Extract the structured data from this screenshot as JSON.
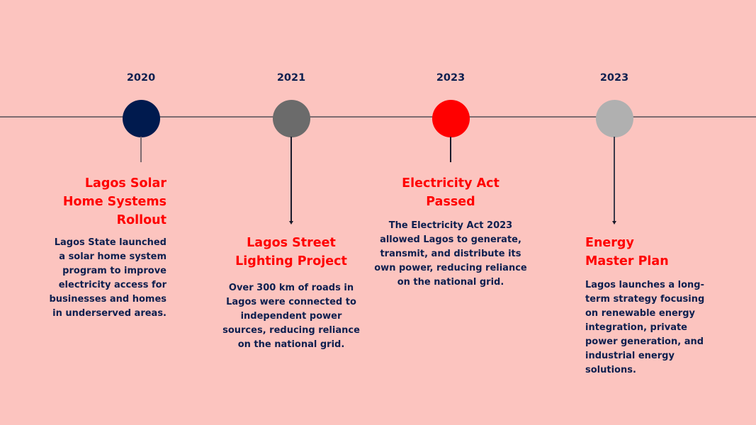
{
  "colors": {
    "background": "#fcc4bf",
    "axis": "#7d6b70",
    "title": "#ff0000",
    "text": "#0d1f4f"
  },
  "events": [
    {
      "year": "2020",
      "dot_color": "#001a4e",
      "title": "Lagos Solar\nHome Systems\nRollout",
      "body": "Lagos State launched\na solar home system\nprogram to improve\nelectricity access for\nbusinesses and homes\nin underserved areas."
    },
    {
      "year": "2021",
      "dot_color": "#6b6b6b",
      "title": "Lagos Street\nLighting Project",
      "body": "Over 300 km of roads in\nLagos were connected to\nindependent power\nsources, reducing reliance\non the national grid."
    },
    {
      "year": "2023",
      "dot_color": "#ff0000",
      "title": "Electricity Act\nPassed",
      "body": "The Electricity Act 2023\nallowed Lagos to generate,\ntransmit, and distribute its\nown power, reducing reliance\non the national grid."
    },
    {
      "year": "2023",
      "dot_color": "#b0b0b0",
      "title": "Energy\nMaster Plan",
      "body": "Lagos launches a long-\nterm strategy focusing\non renewable energy\nintegration, private\npower generation, and\nindustrial energy\nsolutions."
    }
  ]
}
